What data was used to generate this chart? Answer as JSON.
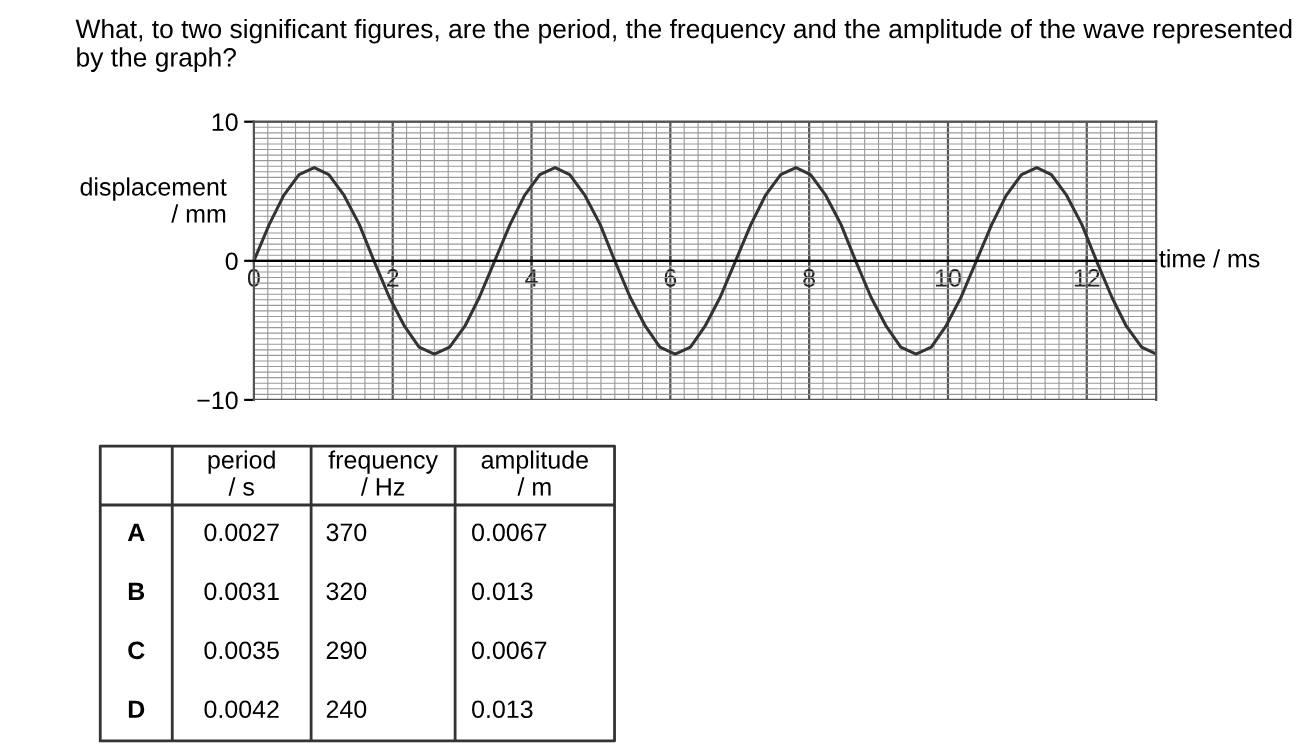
{
  "chart_data": {
    "type": "line",
    "title": "What, to two significant figures, are the period, the frequency and the amplitude of the wave represented by the graph?",
    "xlabel": "time / ms",
    "ylabel": "displacement\n/ mm",
    "x": [
      0,
      0.22,
      0.43,
      0.65,
      0.87,
      1.08,
      1.3,
      1.52,
      1.73,
      1.95,
      2.17,
      2.38,
      2.6,
      2.82,
      3.04,
      3.25,
      3.47,
      3.69,
      3.9,
      4.12,
      4.34,
      4.55,
      4.77,
      4.99,
      5.2,
      5.42,
      5.64,
      5.85,
      6.07,
      6.29,
      6.5,
      6.72,
      6.94,
      7.16,
      7.37,
      7.59,
      7.81,
      8.02,
      8.24,
      8.46,
      8.67,
      8.89,
      9.11,
      9.32,
      9.54,
      9.76,
      9.97,
      10.19,
      10.41,
      10.63,
      10.84,
      11.06,
      11.28,
      11.49,
      11.71,
      11.93,
      12.14,
      12.36,
      12.57,
      12.79,
      13.0
    ],
    "series": [
      {
        "color": "#333333",
        "values": [
          0,
          2.6,
          4.7,
          6.2,
          6.7,
          6.2,
          4.7,
          2.6,
          0,
          -2.6,
          -4.7,
          -6.2,
          -6.7,
          -6.2,
          -4.7,
          -2.6,
          0,
          2.6,
          4.7,
          6.2,
          6.7,
          6.2,
          4.7,
          2.6,
          0,
          -2.6,
          -4.7,
          -6.2,
          -6.7,
          -6.2,
          -4.7,
          -2.6,
          0,
          2.6,
          4.7,
          6.2,
          6.7,
          6.2,
          4.7,
          2.6,
          0,
          -2.6,
          -4.7,
          -6.2,
          -6.7,
          -6.2,
          -4.7,
          -2.6,
          0,
          2.6,
          4.7,
          6.2,
          6.7,
          6.2,
          4.7,
          2.6,
          0,
          -2.6,
          -4.7,
          -6.2,
          -6.7
        ]
      }
    ],
    "xlim": [
      0,
      13
    ],
    "ylim": [
      -10,
      10
    ],
    "xticks": [
      0,
      2,
      4,
      6,
      8,
      10,
      12
    ],
    "yticks": [
      {
        "value": -10,
        "label": "−10"
      },
      0,
      10
    ],
    "grid": true,
    "marker": "none",
    "line_style": "solid",
    "annotations": [
      "period\n/ s",
      "frequency\n/ Hz",
      "amplitude\n/ m",
      "A",
      "0.0027",
      "370",
      "0.0067",
      "B",
      "0.0031",
      "320",
      "0.013",
      "C",
      "0.0035",
      "290",
      "0.0067",
      "D",
      "0.0042",
      "240",
      "0.013"
    ]
  }
}
